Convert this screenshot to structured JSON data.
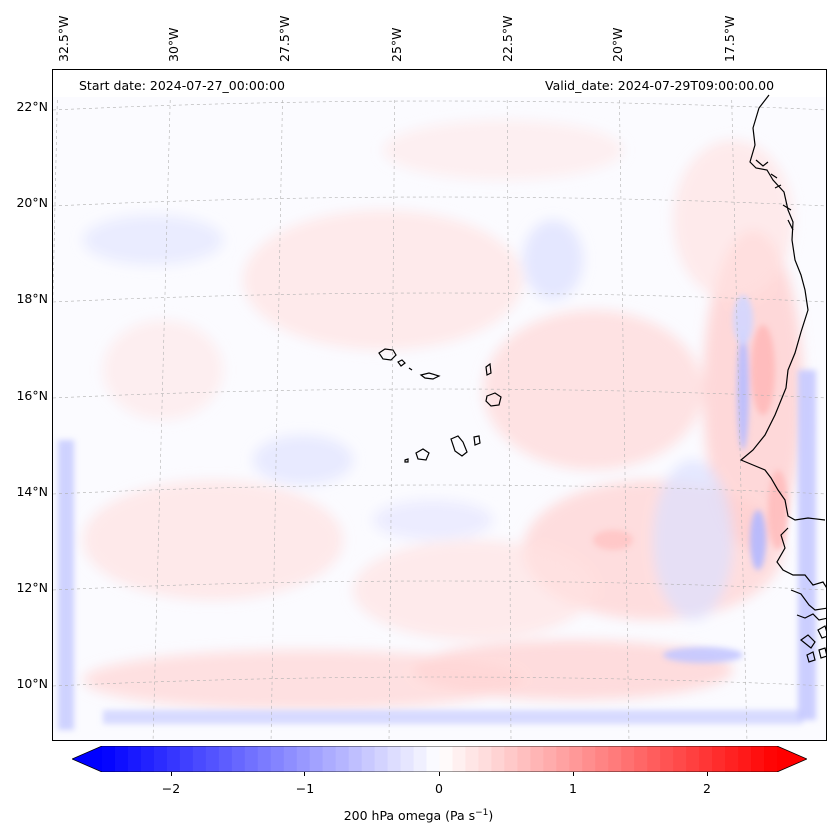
{
  "map": {
    "start_date": "Start date: 2024-07-27_00:00:00",
    "valid_date": "Valid_date: 2024-07-29T09:00:00.00",
    "lon_labels": [
      "32.5°W",
      "30°W",
      "27.5°W",
      "25°W",
      "22.5°W",
      "20°W",
      "17.5°W"
    ],
    "lat_labels": [
      "22°N",
      "20°N",
      "18°N",
      "16°N",
      "14°N",
      "12°N",
      "10°N"
    ],
    "field": "200 hPa omega",
    "extent": {
      "lon_min": -33.2,
      "lon_max": -15.4,
      "lat_min": 8.9,
      "lat_max": 22.8
    },
    "colors": {
      "negative": "#0000ff",
      "zero": "#ffffff",
      "positive": "#ff0000",
      "coastline": "#000000",
      "gridline": "#b0b0b0"
    }
  },
  "colorbar": {
    "label_prefix": "200 hPa omega (Pa s",
    "label_exp": "−1",
    "label_suffix": ")",
    "ticks": [
      "−2",
      "−1",
      "0",
      "1",
      "2"
    ],
    "tick_values": [
      -2,
      -1,
      0,
      1,
      2
    ],
    "range": [
      -2.6,
      2.6
    ],
    "extend": "both"
  }
}
